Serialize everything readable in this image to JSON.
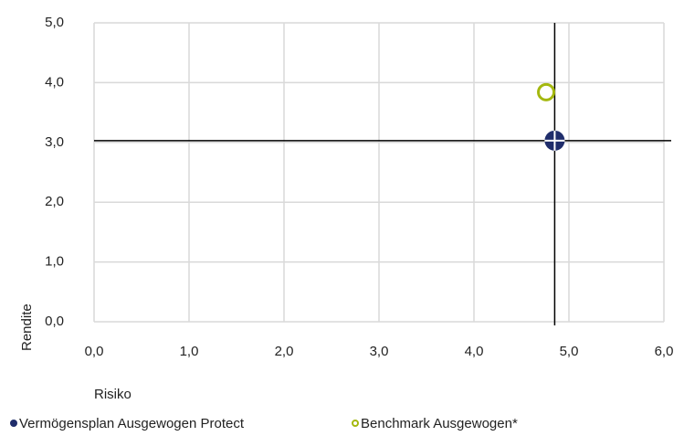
{
  "chart_data": {
    "type": "scatter",
    "x_label": "Risiko",
    "y_label": "Rendite",
    "xlim": [
      0,
      6
    ],
    "ylim": [
      0,
      5
    ],
    "xticks": [
      {
        "value": 0,
        "label": "0,0"
      },
      {
        "value": 1,
        "label": "1,0"
      },
      {
        "value": 2,
        "label": "2,0"
      },
      {
        "value": 3,
        "label": "3,0"
      },
      {
        "value": 4,
        "label": "4,0"
      },
      {
        "value": 5,
        "label": "5,0"
      },
      {
        "value": 6,
        "label": "6,0"
      }
    ],
    "yticks": [
      {
        "value": 0,
        "label": "0,0"
      },
      {
        "value": 1,
        "label": "1,0"
      },
      {
        "value": 2,
        "label": "2,0"
      },
      {
        "value": 3,
        "label": "3,0"
      },
      {
        "value": 4,
        "label": "4,0"
      },
      {
        "value": 5,
        "label": "5,0"
      }
    ],
    "grid": true,
    "series": [
      {
        "name": "Vermögensplan Ausgewogen Protect",
        "color": "#1f2d6b",
        "x": [
          4.85
        ],
        "y": [
          3.03
        ]
      },
      {
        "name": "Benchmark Ausgewogen*",
        "color": "#a4b80f",
        "x": [
          4.76
        ],
        "y": [
          3.84
        ]
      }
    ]
  }
}
